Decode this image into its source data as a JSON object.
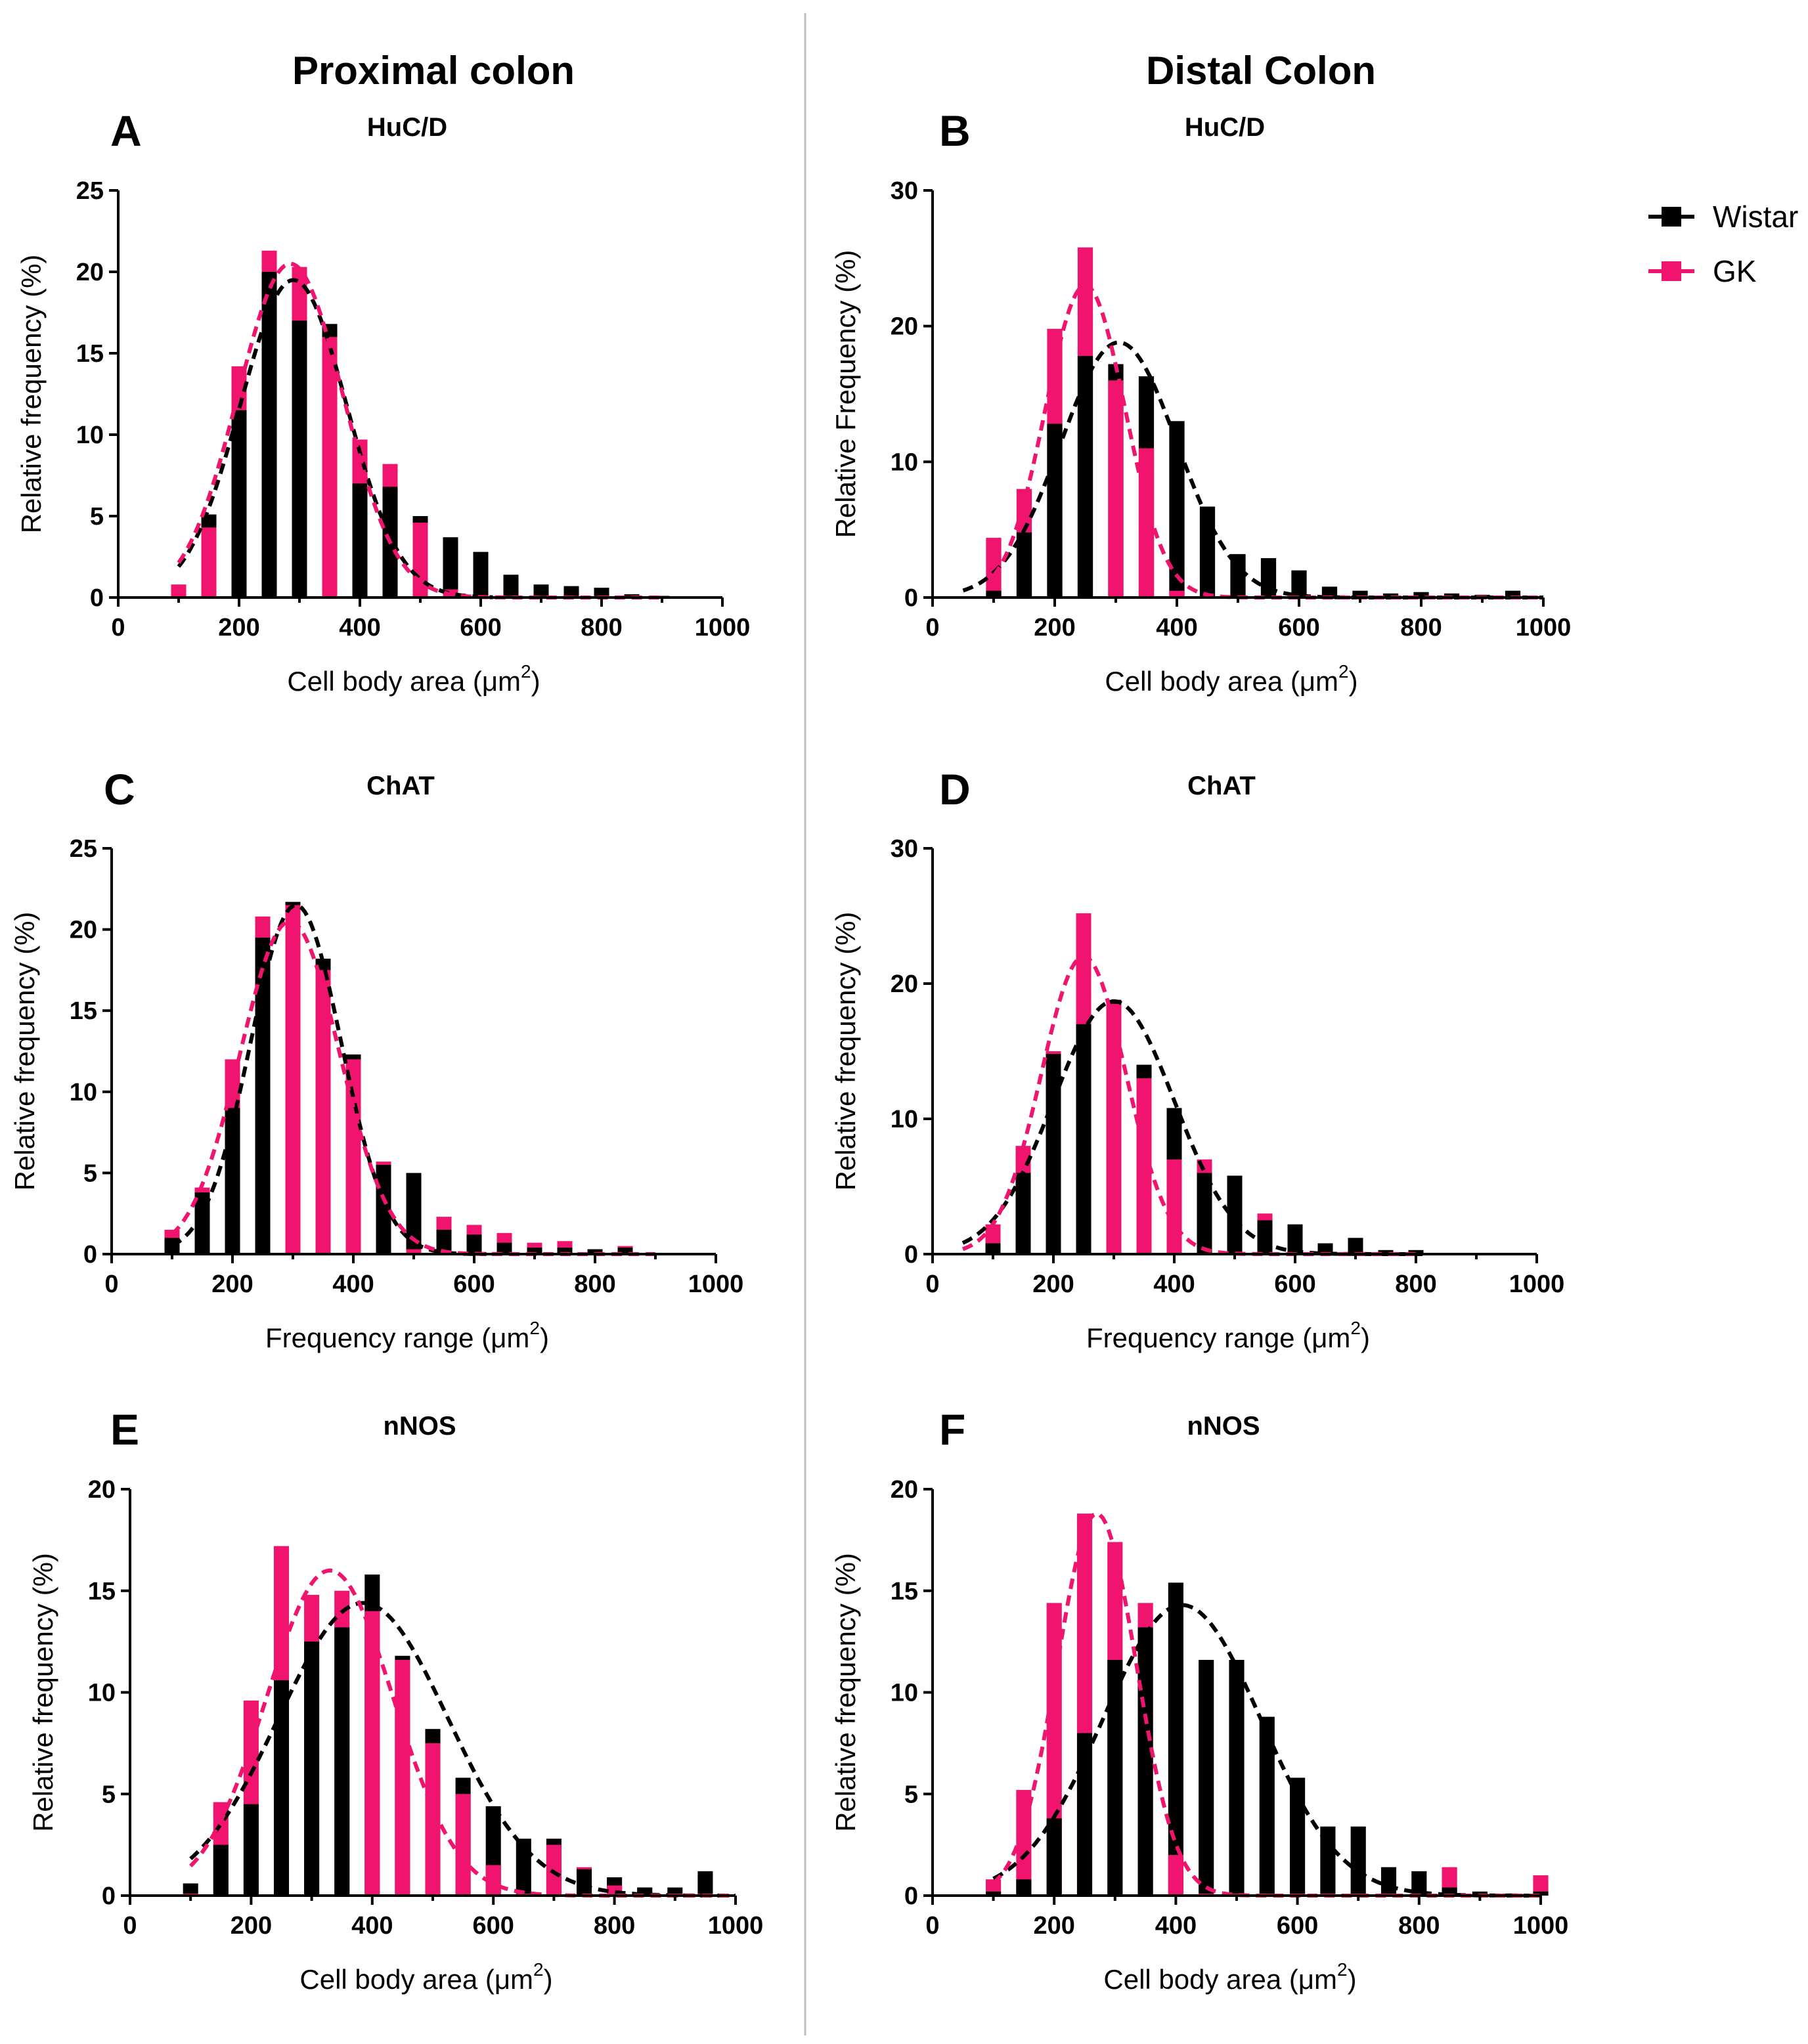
{
  "figure": {
    "columns": [
      "Proximal colon",
      "Distal Colon"
    ]
  },
  "legend": [
    {
      "label": "Wistar",
      "color": "#000000"
    },
    {
      "label": "GK",
      "color": "#f0146e"
    }
  ],
  "colors": {
    "wistar": "#000000",
    "gk": "#f0146e",
    "divider": "#bfbfbf"
  },
  "chart_data": [
    {
      "id": "A",
      "letter": "A",
      "type": "bar",
      "title": "HuC/D",
      "column": "Proximal colon",
      "xlabel": "Cell body area (μm",
      "xlabel_sup": "2",
      "xlabel_end": ")",
      "ylabel": "Relative frequency (%)",
      "xlim": [
        0,
        1000
      ],
      "ylim": [
        0,
        25
      ],
      "xticks": [
        0,
        200,
        400,
        600,
        800,
        1000
      ],
      "yticks": [
        0,
        5,
        10,
        15,
        20,
        25
      ],
      "bins": [
        100,
        150,
        200,
        250,
        300,
        350,
        400,
        450,
        500,
        550,
        600,
        650,
        700,
        750,
        800,
        850,
        900
      ],
      "series": [
        {
          "name": "Wistar",
          "values": [
            0,
            5.1,
            11.5,
            20.0,
            17.0,
            16.8,
            7.0,
            6.8,
            5.0,
            3.7,
            2.8,
            1.4,
            0.8,
            0.7,
            0.6,
            0.2,
            0.1
          ],
          "fit": {
            "mean": 290,
            "sd": 88,
            "amp": 19.5,
            "range": [
              100,
              620
            ]
          }
        },
        {
          "name": "GK",
          "values": [
            0.8,
            4.3,
            14.2,
            21.3,
            20.3,
            16.0,
            9.7,
            8.2,
            4.6,
            0.5,
            0.1,
            0.1,
            0.1,
            0.1,
            0.1,
            0.1,
            0
          ],
          "fit": {
            "mean": 285,
            "sd": 87,
            "amp": 20.5,
            "range": [
              100,
              900
            ]
          }
        }
      ]
    },
    {
      "id": "B",
      "letter": "B",
      "type": "bar",
      "title": "HuC/D",
      "column": "Distal Colon",
      "xlabel": "Cell body area (μm",
      "xlabel_sup": "2",
      "xlabel_end": ")",
      "ylabel": "Relative Frequency (%)",
      "xlim": [
        0,
        1000
      ],
      "ylim": [
        0,
        30
      ],
      "xticks": [
        0,
        200,
        400,
        600,
        800,
        1000
      ],
      "yticks": [
        0,
        10,
        20,
        30
      ],
      "bins": [
        100,
        150,
        200,
        250,
        300,
        350,
        400,
        450,
        500,
        550,
        600,
        650,
        700,
        750,
        800,
        850,
        900,
        950
      ],
      "series": [
        {
          "name": "Wistar",
          "values": [
            0.5,
            4.8,
            12.8,
            17.8,
            17.2,
            16.3,
            13.0,
            6.7,
            3.2,
            2.9,
            2.0,
            0.8,
            0.5,
            0.3,
            0.4,
            0.3,
            0.2,
            0.5
          ],
          "fit": {
            "mean": 305,
            "sd": 95,
            "amp": 18.8,
            "range": [
              50,
              1000
            ]
          }
        },
        {
          "name": "GK",
          "values": [
            4.4,
            8.0,
            19.8,
            25.8,
            16.0,
            11.0,
            0.5,
            0.1,
            0.1,
            0.1,
            0.1,
            0.1,
            0.1,
            0.1,
            0.1,
            0.1,
            0.1,
            0.1
          ],
          "fit": {
            "mean": 250,
            "sd": 65,
            "amp": 23.0,
            "range": [
              100,
              1000
            ]
          }
        }
      ]
    },
    {
      "id": "C",
      "letter": "C",
      "type": "bar",
      "title": "ChAT",
      "column": "Proximal colon",
      "xlabel": "Frequency range (μm",
      "xlabel_sup": "2",
      "xlabel_end": ")",
      "ylabel": "Relative frequency (%)",
      "xlim": [
        0,
        1000
      ],
      "ylim": [
        0,
        25
      ],
      "xticks": [
        0,
        200,
        400,
        600,
        800,
        1000
      ],
      "yticks": [
        0,
        5,
        10,
        15,
        20,
        25
      ],
      "bins": [
        100,
        150,
        200,
        250,
        300,
        350,
        400,
        450,
        500,
        550,
        600,
        650,
        700,
        750,
        800,
        850
      ],
      "series": [
        {
          "name": "Wistar",
          "values": [
            1.0,
            3.8,
            9.0,
            19.5,
            21.7,
            18.2,
            12.3,
            5.5,
            5.0,
            1.5,
            1.2,
            0.7,
            0.4,
            0.4,
            0.3,
            0.4
          ],
          "fit": {
            "mean": 305,
            "sd": 75,
            "amp": 21.5,
            "range": [
              100,
              620
            ]
          }
        },
        {
          "name": "GK",
          "values": [
            1.5,
            4.1,
            12.0,
            20.8,
            21.5,
            17.5,
            12.0,
            5.7,
            0.3,
            2.3,
            1.8,
            1.3,
            0.7,
            0.8,
            0.3,
            0.5
          ],
          "fit": {
            "mean": 295,
            "sd": 82,
            "amp": 20.5,
            "range": [
              100,
              900
            ]
          }
        }
      ]
    },
    {
      "id": "D",
      "letter": "D",
      "type": "bar",
      "title": "ChAT",
      "column": "Distal Colon",
      "xlabel": "Frequency range (μm",
      "xlabel_sup": "2",
      "xlabel_end": ")",
      "ylabel": "Relative frequency (%)",
      "xlim": [
        0,
        1000
      ],
      "ylim": [
        0,
        30
      ],
      "xticks": [
        0,
        200,
        400,
        600,
        800,
        1000
      ],
      "yticks": [
        0,
        10,
        20,
        30
      ],
      "bins": [
        100,
        150,
        200,
        250,
        300,
        350,
        400,
        450,
        500,
        550,
        600,
        650,
        700,
        750,
        800
      ],
      "series": [
        {
          "name": "Wistar",
          "values": [
            0.8,
            6.0,
            14.8,
            17.0,
            18.8,
            14.0,
            10.8,
            6.0,
            5.8,
            2.5,
            2.2,
            0.8,
            1.2,
            0.3,
            0.3
          ],
          "fit": {
            "mean": 300,
            "sd": 100,
            "amp": 18.7,
            "range": [
              50,
              820
            ]
          }
        },
        {
          "name": "GK",
          "values": [
            2.2,
            8.0,
            15.0,
            25.2,
            18.5,
            13.0,
            7.0,
            7.0,
            0.1,
            3.0,
            0.1,
            0.1,
            0.1,
            0.1,
            0.1
          ],
          "fit": {
            "mean": 250,
            "sd": 70,
            "amp": 22.0,
            "range": [
              50,
              800
            ]
          }
        }
      ]
    },
    {
      "id": "E",
      "letter": "E",
      "type": "bar",
      "title": "nNOS",
      "column": "Proximal colon",
      "xlabel": "Cell body area (μm",
      "xlabel_sup": "2",
      "xlabel_end": ")",
      "ylabel": "Relative frequency (%)",
      "xlim": [
        0,
        1000
      ],
      "ylim": [
        0,
        20
      ],
      "xticks": [
        0,
        200,
        400,
        600,
        800,
        1000
      ],
      "yticks": [
        0,
        5,
        10,
        15,
        20
      ],
      "bins": [
        100,
        150,
        200,
        250,
        300,
        350,
        400,
        450,
        500,
        550,
        600,
        650,
        700,
        750,
        800,
        850,
        900,
        950
      ],
      "series": [
        {
          "name": "Wistar",
          "values": [
            0.6,
            2.5,
            4.5,
            10.6,
            12.5,
            13.2,
            15.8,
            11.8,
            8.2,
            5.8,
            4.4,
            2.8,
            2.8,
            1.3,
            0.9,
            0.4,
            0.4,
            1.2
          ],
          "fit": {
            "mean": 385,
            "sd": 140,
            "amp": 14.4,
            "range": [
              100,
              1000
            ]
          }
        },
        {
          "name": "GK",
          "values": [
            0.1,
            4.6,
            9.6,
            17.2,
            14.8,
            15.0,
            14.0,
            11.6,
            7.5,
            5.0,
            1.5,
            0.1,
            2.5,
            1.4,
            0.5,
            0.4,
            0.1,
            0.1
          ],
          "fit": {
            "mean": 330,
            "sd": 105,
            "amp": 16.0,
            "range": [
              100,
              1000
            ]
          }
        }
      ]
    },
    {
      "id": "F",
      "letter": "F",
      "type": "bar",
      "title": "nNOS",
      "column": "Distal Colon",
      "xlabel": "Cell body area (μm",
      "xlabel_sup": "2",
      "xlabel_end": ")",
      "ylabel": "Relative frequency (%)",
      "xlim": [
        0,
        1000
      ],
      "ylim": [
        0,
        20
      ],
      "xticks": [
        0,
        200,
        400,
        600,
        800,
        1000
      ],
      "yticks": [
        0,
        5,
        10,
        15,
        20
      ],
      "bins": [
        100,
        150,
        200,
        250,
        300,
        350,
        400,
        450,
        500,
        550,
        600,
        650,
        700,
        750,
        800,
        850,
        900,
        950,
        1000
      ],
      "series": [
        {
          "name": "Wistar",
          "values": [
            0.2,
            0.8,
            3.8,
            8.0,
            11.6,
            13.2,
            15.4,
            11.6,
            11.6,
            8.8,
            5.8,
            3.4,
            3.4,
            1.4,
            1.2,
            0.4,
            0.2,
            0.1,
            0.2
          ],
          "fit": {
            "mean": 410,
            "sd": 130,
            "amp": 14.3,
            "range": [
              100,
              1000
            ]
          }
        },
        {
          "name": "GK",
          "values": [
            0.8,
            5.2,
            14.4,
            18.8,
            17.4,
            14.4,
            2.0,
            0.1,
            0.1,
            0.1,
            0.1,
            0.1,
            0.1,
            0.1,
            0.1,
            1.4,
            0.1,
            0.1,
            1.0
          ],
          "fit": {
            "mean": 270,
            "sd": 65,
            "amp": 18.8,
            "range": [
              100,
              1000
            ]
          }
        }
      ]
    }
  ]
}
